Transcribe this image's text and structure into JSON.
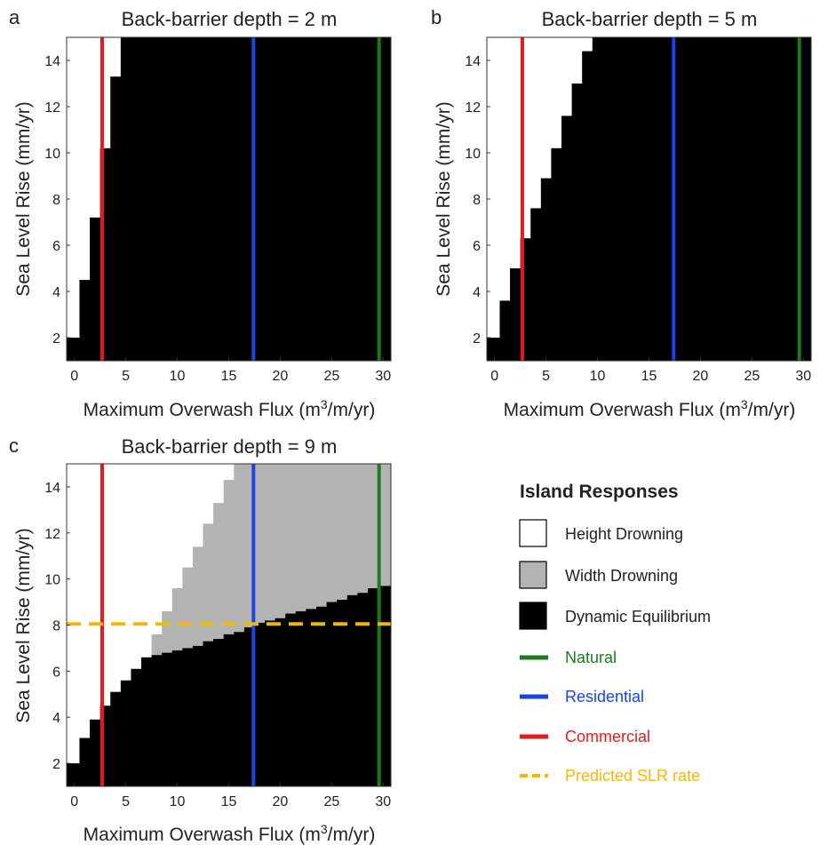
{
  "chart_data": [
    {
      "panel": "a",
      "type": "heatmap",
      "title": "Back-barrier depth = 2 m",
      "xlabel": "Maximum Overwash Flux (m^3/m/yr)",
      "ylabel": "Sea Level Rise (mm/yr)",
      "xlim": [
        -0.75,
        30.75
      ],
      "ylim": [
        1,
        15
      ],
      "xticks": [
        0,
        5,
        10,
        15,
        20,
        25,
        30
      ],
      "yticks": [
        2,
        4,
        6,
        8,
        10,
        12,
        14
      ],
      "grid": false,
      "boundaries": [
        {
          "name": "Dynamic Equilibrium lower edge",
          "x": [
            0,
            1,
            2,
            3,
            4,
            5
          ],
          "y": [
            2.0,
            4.5,
            7.2,
            10.2,
            13.3,
            15
          ]
        }
      ],
      "reference_lines": [
        {
          "name": "Commercial",
          "orientation": "vertical",
          "x": 2.7,
          "color": "#e8191d"
        },
        {
          "name": "Residential",
          "orientation": "vertical",
          "x": 17.4,
          "color": "#1a44e8"
        },
        {
          "name": "Natural",
          "orientation": "vertical",
          "x": 29.6,
          "color": "#1e7a1e"
        }
      ]
    },
    {
      "panel": "b",
      "type": "heatmap",
      "title": "Back-barrier depth = 5 m",
      "xlabel": "Maximum Overwash Flux (m^3/m/yr)",
      "ylabel": "Sea Level Rise (mm/yr)",
      "xlim": [
        -0.75,
        30.75
      ],
      "ylim": [
        1,
        15
      ],
      "xticks": [
        0,
        5,
        10,
        15,
        20,
        25,
        30
      ],
      "yticks": [
        2,
        4,
        6,
        8,
        10,
        12,
        14
      ],
      "grid": false,
      "boundaries": [
        {
          "name": "Dynamic Equilibrium lower edge",
          "x": [
            0,
            1,
            2,
            3,
            4,
            5,
            6,
            7,
            8,
            9,
            10
          ],
          "y": [
            2.0,
            3.6,
            5.0,
            6.3,
            7.6,
            8.9,
            10.2,
            11.6,
            13.0,
            14.4,
            15
          ]
        }
      ],
      "reference_lines": [
        {
          "name": "Commercial",
          "orientation": "vertical",
          "x": 2.7,
          "color": "#e8191d"
        },
        {
          "name": "Residential",
          "orientation": "vertical",
          "x": 17.4,
          "color": "#1a44e8"
        },
        {
          "name": "Natural",
          "orientation": "vertical",
          "x": 29.6,
          "color": "#1e7a1e"
        }
      ]
    },
    {
      "panel": "c",
      "type": "heatmap",
      "title": "Back-barrier depth = 9 m",
      "xlabel": "Maximum Overwash Flux (m^3/m/yr)",
      "ylabel": "Sea Level Rise (mm/yr)",
      "xlim": [
        -0.75,
        30.75
      ],
      "ylim": [
        1,
        15
      ],
      "xticks": [
        0,
        5,
        10,
        15,
        20,
        25,
        30
      ],
      "yticks": [
        2,
        4,
        6,
        8,
        10,
        12,
        14
      ],
      "grid": false,
      "boundaries": [
        {
          "name": "Dynamic Equilibrium upper edge",
          "x": [
            0,
            1,
            2,
            3,
            4,
            5,
            6,
            7,
            8,
            9,
            10,
            11,
            12,
            13,
            14,
            15,
            16,
            17,
            18,
            19,
            20,
            21,
            22,
            23,
            24,
            25,
            26,
            27,
            28,
            29,
            30
          ],
          "y": [
            2.0,
            3.1,
            3.9,
            4.5,
            5.1,
            5.6,
            6.1,
            6.6,
            6.7,
            6.8,
            6.9,
            7.0,
            7.1,
            7.3,
            7.4,
            7.6,
            7.7,
            7.9,
            8.1,
            8.2,
            8.3,
            8.5,
            8.6,
            8.7,
            8.8,
            9.0,
            9.1,
            9.3,
            9.4,
            9.6,
            9.7
          ]
        },
        {
          "name": "Width Drowning upper edge",
          "x": [
            8,
            9,
            10,
            11,
            12,
            13,
            14,
            15,
            16,
            17,
            18,
            19,
            20,
            21,
            22,
            23,
            24,
            25,
            26,
            27,
            28,
            29,
            30
          ],
          "y": [
            7.6,
            8.6,
            9.6,
            10.5,
            11.4,
            12.4,
            13.3,
            14.3,
            15,
            15,
            15,
            15,
            15,
            15,
            15,
            15,
            15,
            15,
            15,
            15,
            15,
            15,
            15
          ]
        }
      ],
      "reference_lines": [
        {
          "name": "Commercial",
          "orientation": "vertical",
          "x": 2.7,
          "color": "#e8191d"
        },
        {
          "name": "Residential",
          "orientation": "vertical",
          "x": 17.4,
          "color": "#1a44e8"
        },
        {
          "name": "Natural",
          "orientation": "vertical",
          "x": 29.6,
          "color": "#1e7a1e"
        },
        {
          "name": "Predicted SLR rate",
          "orientation": "horizontal",
          "y": 8.05,
          "color": "#f5b800",
          "dashed": true
        }
      ]
    }
  ],
  "legend": {
    "title": "Island Responses",
    "placement": "bottom-right",
    "items": [
      {
        "label": "Height Drowning",
        "kind": "box",
        "color": "#ffffff",
        "text_color": "#222222"
      },
      {
        "label": "Width Drowning",
        "kind": "box",
        "color": "#b3b3b3",
        "text_color": "#222222"
      },
      {
        "label": "Dynamic Equilibrium",
        "kind": "box",
        "color": "#000000",
        "text_color": "#222222"
      },
      {
        "label": "Natural",
        "kind": "line",
        "color": "#1e7a1e",
        "text_color": "#1e7a1e"
      },
      {
        "label": "Residential",
        "kind": "line",
        "color": "#1a44e8",
        "text_color": "#1a44e8"
      },
      {
        "label": "Commercial",
        "kind": "line",
        "color": "#e8191d",
        "text_color": "#e8191d"
      },
      {
        "label": "Predicted SLR rate",
        "kind": "dash",
        "color": "#f5b800",
        "text_color": "#f5b800"
      }
    ]
  },
  "colors": {
    "height_drowning": "#ffffff",
    "width_drowning": "#b3b3b3",
    "dynamic_equilibrium": "#000000"
  }
}
